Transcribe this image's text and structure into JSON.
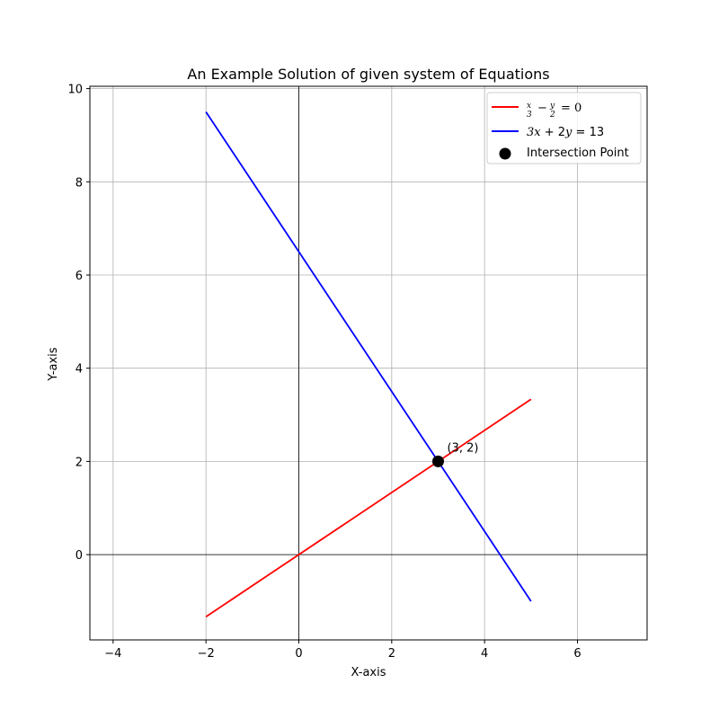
{
  "chart_data": {
    "type": "line",
    "title": "An Example Solution of given system of Equations",
    "xlabel": "X-axis",
    "ylabel": "Y-axis",
    "xlim": [
      -4.5,
      7.5
    ],
    "ylim": [
      -1.83,
      10.05
    ],
    "xticks": [
      -4,
      -2,
      0,
      2,
      4,
      6
    ],
    "yticks": [
      0,
      2,
      4,
      6,
      8,
      10
    ],
    "grid": true,
    "legend_position": "upper-right",
    "series": [
      {
        "name": "x/3 - y/2 = 0",
        "color": "#ff0000",
        "x": [
          -2,
          5
        ],
        "y": [
          -1.333,
          3.333
        ]
      },
      {
        "name": "3x + 2y = 13",
        "color": "#0000ff",
        "x": [
          -2,
          5
        ],
        "y": [
          9.5,
          -1.0
        ]
      }
    ],
    "points": [
      {
        "name": "Intersection Point",
        "x": 3,
        "y": 2,
        "color": "#000000",
        "label": "(3, 2)"
      }
    ]
  }
}
